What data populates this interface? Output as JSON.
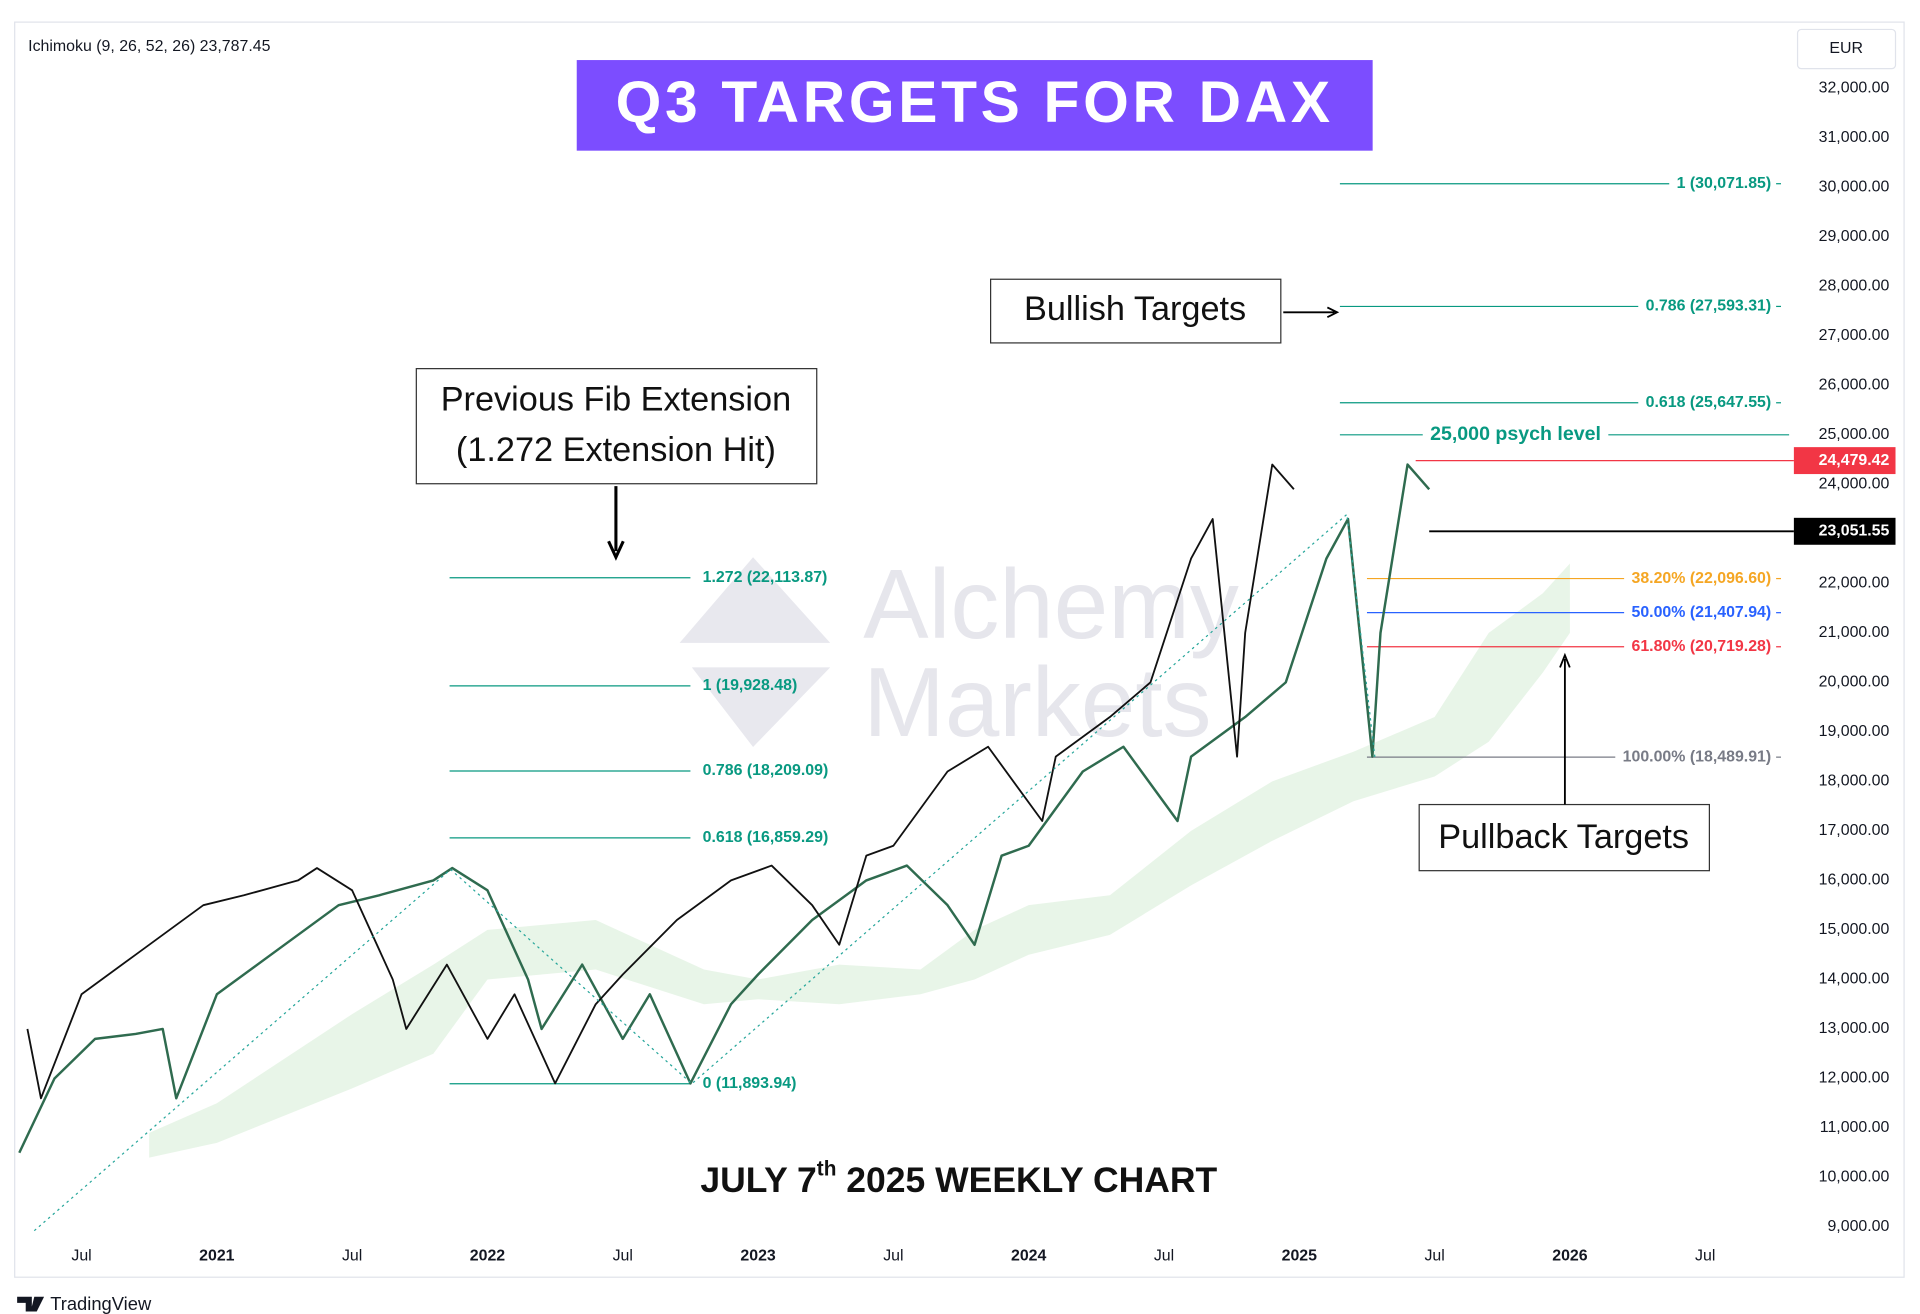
{
  "chart_data": {
    "type": "line",
    "title": "Q3 TARGETS FOR DAX",
    "indicator": "Ichimoku (9, 26, 52, 26)  23,787.45",
    "currency": "EUR",
    "footnote": {
      "main": "JULY 7",
      "sup": "th",
      "rest": " 2025 WEEKLY CHART"
    },
    "watermark": [
      "Alchemy",
      "Markets"
    ],
    "brand": "TradingView",
    "annotations": {
      "previous": [
        "Previous Fib Extension",
        "(1.272 Extension Hit)"
      ],
      "bullish": "Bullish Targets",
      "pullback": "Pullback Targets"
    },
    "xlim": [
      2020.253,
      2026.814
    ],
    "xticks": [
      {
        "value": 2020.5,
        "label": "Jul"
      },
      2021,
      {
        "value": 2021.5,
        "label": "Jul"
      },
      2022,
      {
        "value": 2022.5,
        "label": "Jul"
      },
      2023,
      {
        "value": 2023.5,
        "label": "Jul"
      },
      2024,
      {
        "value": 2024.5,
        "label": "Jul"
      },
      2025,
      {
        "value": 2025.5,
        "label": "Jul"
      },
      2026,
      {
        "value": 2026.5,
        "label": "Jul"
      }
    ],
    "ylim": [
      7986,
      33336
    ],
    "yticks": [
      {
        "value": 9000,
        "label": "9,000.00"
      },
      {
        "value": 10000,
        "label": "10,000.00"
      },
      {
        "value": 11000,
        "label": "11,000.00"
      },
      {
        "value": 12000,
        "label": "12,000.00"
      },
      {
        "value": 13000,
        "label": "13,000.00"
      },
      {
        "value": 14000,
        "label": "14,000.00"
      },
      {
        "value": 15000,
        "label": "15,000.00"
      },
      {
        "value": 16000,
        "label": "16,000.00"
      },
      {
        "value": 17000,
        "label": "17,000.00"
      },
      {
        "value": 18000,
        "label": "18,000.00"
      },
      {
        "value": 19000,
        "label": "19,000.00"
      },
      {
        "value": 20000,
        "label": "20,000.00"
      },
      {
        "value": 21000,
        "label": "21,000.00"
      },
      {
        "value": 22000,
        "label": "22,000.00"
      },
      {
        "value": 23000,
        "label": "23,000.00"
      },
      {
        "value": 24000,
        "label": "24,000.00"
      },
      {
        "value": 25000,
        "label": "25,000.00"
      },
      {
        "value": 26000,
        "label": "26,000.00"
      },
      {
        "value": 27000,
        "label": "27,000.00"
      },
      {
        "value": 28000,
        "label": "28,000.00"
      },
      {
        "value": 29000,
        "label": "29,000.00"
      },
      {
        "value": 30000,
        "label": "30,000.00"
      },
      {
        "value": 31000,
        "label": "31,000.00"
      },
      {
        "value": 32000,
        "label": "32,000.00"
      }
    ],
    "cloud": {
      "color": "#4caf50",
      "x": [
        2020.75,
        2021.0,
        2021.5,
        2021.8,
        2022.0,
        2022.4,
        2022.8,
        2023.0,
        2023.3,
        2023.6,
        2023.8,
        2024.0,
        2024.3,
        2024.6,
        2024.9,
        2025.2,
        2025.5,
        2025.7,
        2025.9,
        2026.0
      ],
      "upper": [
        10900,
        11500,
        13300,
        14300,
        15000,
        15200,
        14200,
        14000,
        14300,
        14200,
        15000,
        15500,
        15700,
        17000,
        18000,
        18600,
        19300,
        21000,
        21800,
        22400
      ],
      "lower": [
        10400,
        10700,
        11800,
        12500,
        14000,
        14200,
        13500,
        13600,
        13500,
        13700,
        14000,
        14500,
        14900,
        15900,
        16800,
        17600,
        18100,
        18800,
        20200,
        21000
      ]
    },
    "series": [
      {
        "color": "#2f6b4f",
        "x": [
          2020.27,
          2020.4,
          2020.55,
          2020.7,
          2020.8,
          2020.85,
          2021.0,
          2021.2,
          2021.45,
          2021.6,
          2021.8,
          2021.87,
          2022.0,
          2022.15,
          2022.2,
          2022.35,
          2022.5,
          2022.6,
          2022.75,
          2022.9,
          2023.0,
          2023.2,
          2023.4,
          2023.55,
          2023.7,
          2023.8,
          2023.9,
          2024.0,
          2024.2,
          2024.35,
          2024.55,
          2024.6,
          2024.8,
          2024.95,
          2025.1,
          2025.18,
          2025.27,
          2025.3,
          2025.4,
          2025.48
        ],
        "values": [
          10500,
          12000,
          12800,
          12900,
          13000,
          11600,
          13700,
          14500,
          15500,
          15700,
          16000,
          16250,
          15800,
          14000,
          13000,
          14300,
          12800,
          13700,
          11900,
          13500,
          14100,
          15200,
          16000,
          16300,
          15500,
          14700,
          16500,
          16700,
          18200,
          18700,
          17200,
          18500,
          19300,
          20000,
          22500,
          23300,
          18500,
          21000,
          24400,
          23900
        ]
      },
      {
        "color": "#111111",
        "x": [
          2020.3,
          2020.35,
          2020.5,
          2020.7,
          2020.95,
          2021.1,
          2021.3,
          2021.37,
          2021.5,
          2021.65,
          2021.7,
          2021.85,
          2022.0,
          2022.1,
          2022.25,
          2022.4,
          2022.5,
          2022.7,
          2022.9,
          2023.05,
          2023.2,
          2023.3,
          2023.4,
          2023.5,
          2023.7,
          2023.85,
          2024.05,
          2024.1,
          2024.3,
          2024.45,
          2024.6,
          2024.68,
          2024.77,
          2024.8,
          2024.9,
          2024.98
        ],
        "values": [
          13000,
          11600,
          13700,
          14500,
          15500,
          15700,
          16000,
          16250,
          15800,
          14000,
          13000,
          14300,
          12800,
          13700,
          11900,
          13500,
          14100,
          15200,
          16000,
          16300,
          15500,
          14700,
          16500,
          16700,
          18200,
          18700,
          17200,
          18500,
          19300,
          20000,
          22500,
          23300,
          18500,
          21000,
          24400,
          23900
        ]
      }
    ],
    "fib_groups": [
      {
        "x": [
          2021.86,
          2022.75
        ],
        "color": "#089981",
        "label_position": "after",
        "levels": [
          {
            "value": 22113.87,
            "label": "1.272 (22,113.87)"
          },
          {
            "value": 19928.48,
            "label": "1 (19,928.48)"
          },
          {
            "value": 18209.09,
            "label": "0.786 (18,209.09)"
          },
          {
            "value": 16859.29,
            "label": "0.618 (16,859.29)"
          },
          {
            "value": 11893.94,
            "label": "0 (11,893.94)"
          }
        ]
      },
      {
        "x": [
          2025.15,
          2026.78
        ],
        "color": "#089981",
        "label_position": "end",
        "levels": [
          {
            "value": 30071.85,
            "label": "1 (30,071.85)"
          },
          {
            "value": 27593.31,
            "label": "0.786 (27,593.31)"
          },
          {
            "value": 25647.55,
            "label": "0.618 (25,647.55)"
          }
        ]
      },
      {
        "x": [
          2025.15,
          2026.81
        ],
        "color": "#089981",
        "label_position": "center",
        "label_bold": true,
        "levels": [
          {
            "value": 25000,
            "label": "25,000 psych level"
          }
        ]
      },
      {
        "x": [
          2025.25,
          2026.78
        ],
        "color": "#787b86",
        "label_position": "end",
        "levels": [
          {
            "value": 22096.6,
            "label": "38.20% (22,096.60)",
            "color": "#f5a623"
          },
          {
            "value": 21407.94,
            "label": "50.00% (21,407.94)",
            "color": "#2962ff"
          },
          {
            "value": 20719.28,
            "label": "61.80% (20,719.28)",
            "color": "#f23645"
          },
          {
            "value": 18489.91,
            "label": "100.00% (18,489.91)",
            "color": "#787b86"
          }
        ]
      }
    ],
    "price_tags": [
      {
        "value": 24479.42,
        "label": "24,479.42",
        "color": "#f23645",
        "from": 2025.43
      },
      {
        "value": 23051.55,
        "label": "23,051.55",
        "color": "#000000",
        "from": 2025.48
      }
    ]
  }
}
